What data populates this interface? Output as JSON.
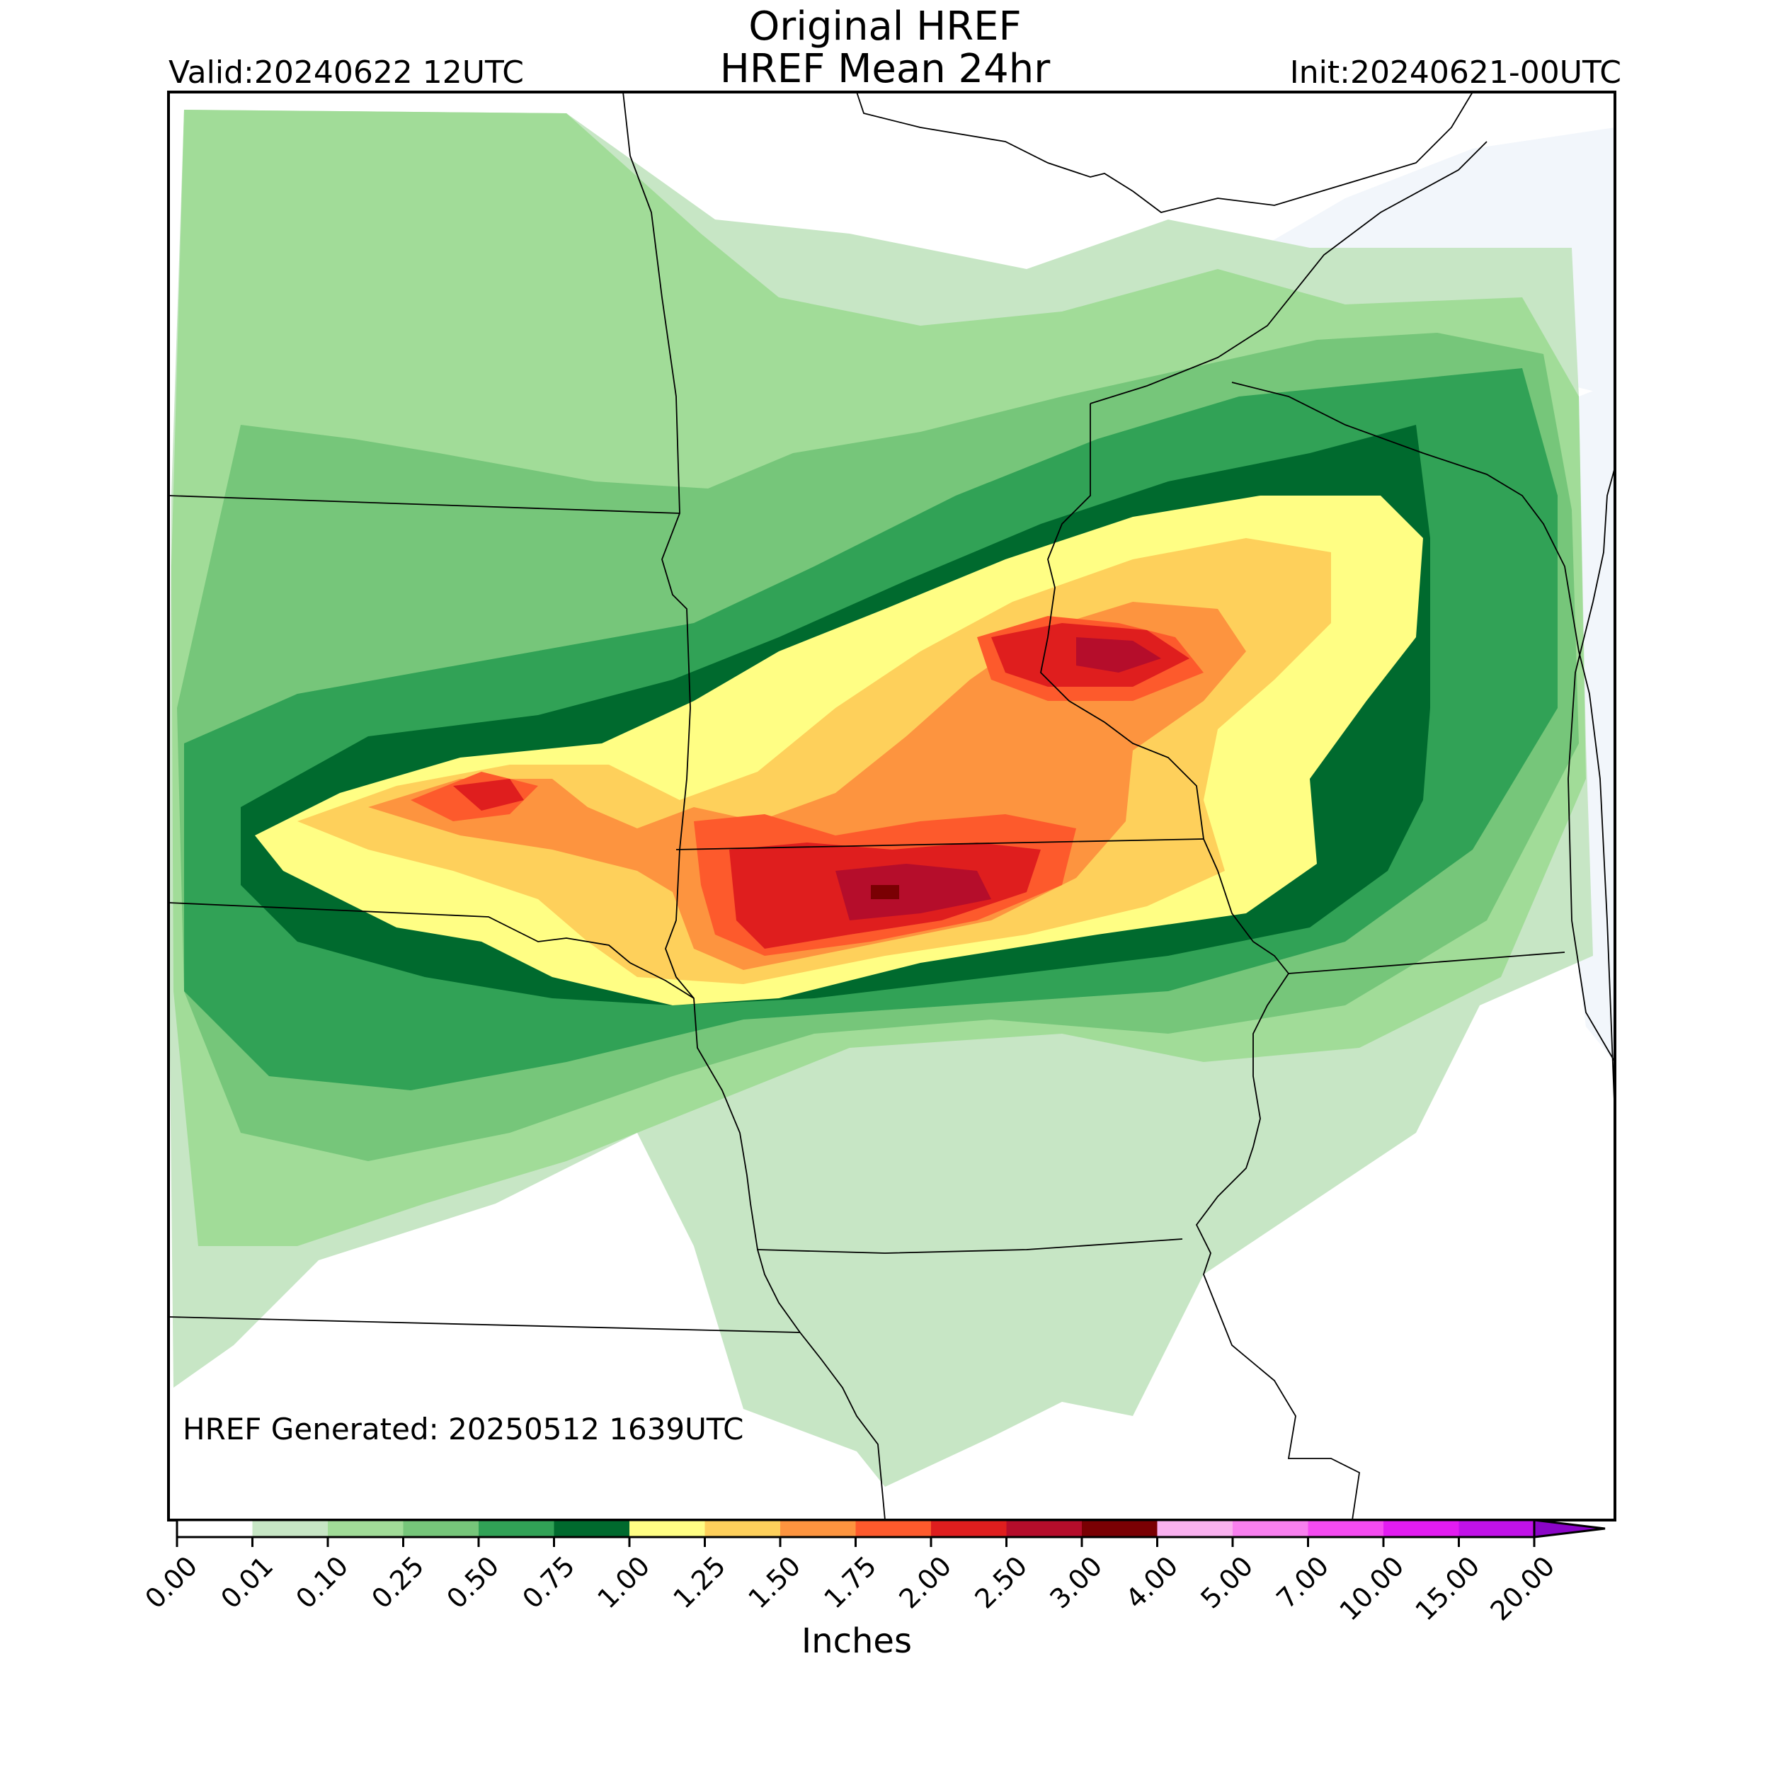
{
  "header": {
    "title_line1": "Original HREF",
    "title_line2": "HREF Mean 24hr",
    "valid": "Valid:20240622 12UTC",
    "init": "Init:20240621-00UTC"
  },
  "map": {
    "footnote": "HREF Generated: 20250512 1639UTC",
    "background_color": "#ffffff",
    "lake_color": "#f2f6fb"
  },
  "colorbar": {
    "title": "Inches",
    "tick_labels": [
      "0.00",
      "0.01",
      "0.10",
      "0.25",
      "0.50",
      "0.75",
      "1.00",
      "1.25",
      "1.50",
      "1.75",
      "2.00",
      "2.50",
      "3.00",
      "4.00",
      "5.00",
      "7.00",
      "10.00",
      "15.00",
      "20.00"
    ],
    "colors": [
      "#ffffff",
      "#c7e6c5",
      "#a1dc98",
      "#76c67a",
      "#31a256",
      "#006a2e",
      "#fffe84",
      "#fed05b",
      "#fd943f",
      "#fd5a2c",
      "#df1e1e",
      "#b50d2b",
      "#7a0003",
      "#f9b1ef",
      "#f880ef",
      "#f54bf1",
      "#e21cf1",
      "#c112e8",
      "#8b05c7"
    ],
    "extend": "max"
  }
}
